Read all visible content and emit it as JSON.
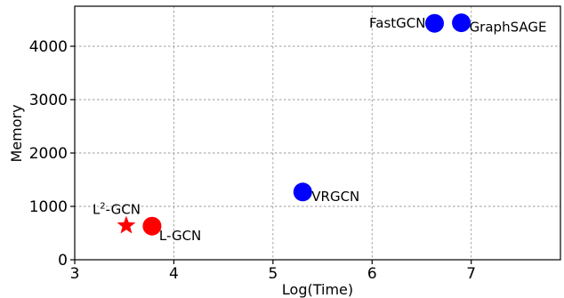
{
  "chart_data": {
    "type": "scatter",
    "xlabel": "Log(Time)",
    "ylabel": "Memory",
    "xlim": [
      3,
      7.9
    ],
    "ylim": [
      0,
      4750
    ],
    "xticks": [
      "3",
      "4",
      "5",
      "6",
      "7"
    ],
    "yticks": [
      "0",
      "1000",
      "2000",
      "3000",
      "4000"
    ],
    "grid": true,
    "points": [
      {
        "label": "FastGCN",
        "x": 6.63,
        "y": 4430,
        "marker": "circle",
        "color": "#0000ff"
      },
      {
        "label": "GraphSAGE",
        "x": 6.9,
        "y": 4440,
        "marker": "circle",
        "color": "#0000ff"
      },
      {
        "label": "VRGCN",
        "x": 5.3,
        "y": 1270,
        "marker": "circle",
        "color": "#0000ff"
      },
      {
        "label": "L-GCN",
        "x": 3.78,
        "y": 630,
        "marker": "circle",
        "color": "#ff0000"
      },
      {
        "label_base": "L",
        "label_sup": "2",
        "label_rest": "-GCN",
        "x": 3.52,
        "y": 640,
        "marker": "star",
        "color": "#ff0000"
      }
    ]
  }
}
